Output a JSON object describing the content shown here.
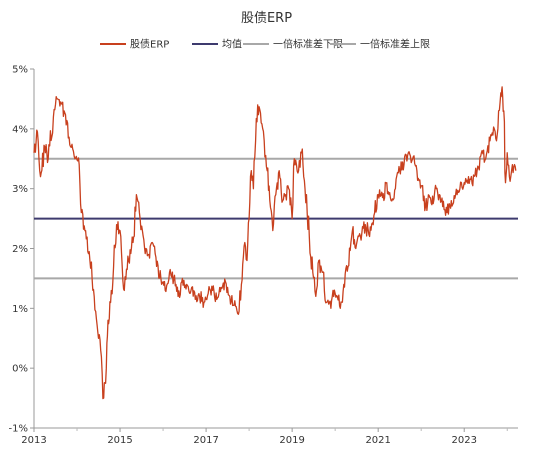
{
  "chart_data": {
    "type": "line",
    "title": "股债ERP",
    "xlabel": "",
    "ylabel": "",
    "xlim": [
      2013.0,
      2024.25
    ],
    "ylim": [
      -1,
      5
    ],
    "x_ticks": [
      "2013",
      "2015",
      "2017",
      "2019",
      "2021",
      "2023"
    ],
    "x_tick_values": [
      2013,
      2015,
      2017,
      2019,
      2021,
      2023
    ],
    "y_ticks": [
      "-1%",
      "0%",
      "1%",
      "2%",
      "3%",
      "4%",
      "5%"
    ],
    "y_tick_values": [
      -1,
      0,
      1,
      2,
      3,
      4,
      5
    ],
    "grid": false,
    "legend_position": "top",
    "series": [
      {
        "name": "股债ERP",
        "color": "#c8401e",
        "style": "line",
        "x": [
          2013.0,
          2013.08,
          2013.15,
          2013.25,
          2013.33,
          2013.45,
          2013.55,
          2013.62,
          2013.7,
          2013.78,
          2013.85,
          2013.95,
          2014.05,
          2014.1,
          2014.2,
          2014.3,
          2014.4,
          2014.5,
          2014.55,
          2014.62,
          2014.68,
          2014.72,
          2014.78,
          2014.85,
          2014.92,
          2015.0,
          2015.05,
          2015.1,
          2015.2,
          2015.3,
          2015.38,
          2015.45,
          2015.52,
          2015.6,
          2015.67,
          2015.75,
          2015.85,
          2015.95,
          2016.05,
          2016.15,
          2016.25,
          2016.35,
          2016.45,
          2016.55,
          2016.65,
          2016.75,
          2016.85,
          2016.95,
          2017.05,
          2017.15,
          2017.25,
          2017.35,
          2017.45,
          2017.55,
          2017.65,
          2017.75,
          2017.82,
          2017.9,
          2017.95,
          2018.0,
          2018.05,
          2018.1,
          2018.15,
          2018.2,
          2018.28,
          2018.35,
          2018.42,
          2018.48,
          2018.55,
          2018.62,
          2018.7,
          2018.78,
          2018.85,
          2018.92,
          2019.0,
          2019.05,
          2019.15,
          2019.22,
          2019.3,
          2019.4,
          2019.48,
          2019.55,
          2019.62,
          2019.7,
          2019.8,
          2019.9,
          2019.95,
          2020.05,
          2020.12,
          2020.2,
          2020.3,
          2020.4,
          2020.48,
          2020.55,
          2020.62,
          2020.7,
          2020.8,
          2020.9,
          2021.0,
          2021.1,
          2021.2,
          2021.3,
          2021.4,
          2021.5,
          2021.6,
          2021.7,
          2021.8,
          2021.9,
          2022.0,
          2022.1,
          2022.2,
          2022.28,
          2022.35,
          2022.42,
          2022.5,
          2022.6,
          2022.7,
          2022.8,
          2022.9,
          2023.0,
          2023.1,
          2023.2,
          2023.3,
          2023.4,
          2023.5,
          2023.6,
          2023.7,
          2023.75,
          2023.8,
          2023.85,
          2023.88,
          2023.92,
          2023.96,
          2024.0,
          2024.05,
          2024.12,
          2024.2
        ],
        "y": [
          3.6,
          3.95,
          3.2,
          3.7,
          3.5,
          4.2,
          4.5,
          4.45,
          4.3,
          4.1,
          3.7,
          3.5,
          3.4,
          2.6,
          2.3,
          1.8,
          1.2,
          0.5,
          0.3,
          -0.5,
          0.0,
          0.8,
          1.1,
          1.7,
          2.4,
          2.3,
          1.7,
          1.3,
          1.8,
          2.1,
          2.9,
          2.6,
          2.3,
          2.0,
          1.9,
          2.1,
          1.7,
          1.5,
          1.3,
          1.6,
          1.5,
          1.2,
          1.5,
          1.4,
          1.3,
          1.15,
          1.2,
          1.1,
          1.25,
          1.3,
          1.15,
          1.35,
          1.45,
          1.2,
          1.05,
          0.9,
          1.4,
          2.1,
          1.8,
          2.5,
          3.3,
          3.0,
          3.8,
          4.4,
          4.1,
          3.8,
          3.3,
          2.8,
          2.3,
          2.9,
          3.3,
          2.8,
          2.9,
          3.0,
          2.5,
          3.5,
          3.3,
          3.6,
          3.0,
          2.2,
          1.6,
          1.2,
          1.8,
          1.6,
          1.1,
          1.0,
          1.3,
          1.2,
          1.0,
          1.4,
          1.7,
          2.3,
          2.0,
          2.2,
          2.25,
          2.4,
          2.2,
          2.55,
          2.9,
          2.85,
          3.1,
          2.8,
          3.0,
          3.3,
          3.4,
          3.6,
          3.5,
          3.3,
          3.05,
          2.7,
          2.85,
          2.75,
          3.0,
          2.9,
          2.7,
          2.6,
          2.8,
          2.9,
          3.0,
          3.1,
          3.2,
          3.05,
          3.3,
          3.6,
          3.5,
          3.8,
          4.0,
          3.8,
          4.3,
          4.6,
          4.7,
          4.3,
          3.1,
          3.6,
          3.2,
          3.4,
          3.3
        ]
      },
      {
        "name": "均值",
        "color": "#3d3a6e",
        "style": "hline",
        "value": 2.5
      },
      {
        "name": "一倍标准差下限",
        "color": "#a8a8a8",
        "style": "hline",
        "value": 1.5
      },
      {
        "name": "一倍标准差上限",
        "color": "#a8a8a8",
        "style": "hline",
        "value": 3.5
      }
    ]
  }
}
